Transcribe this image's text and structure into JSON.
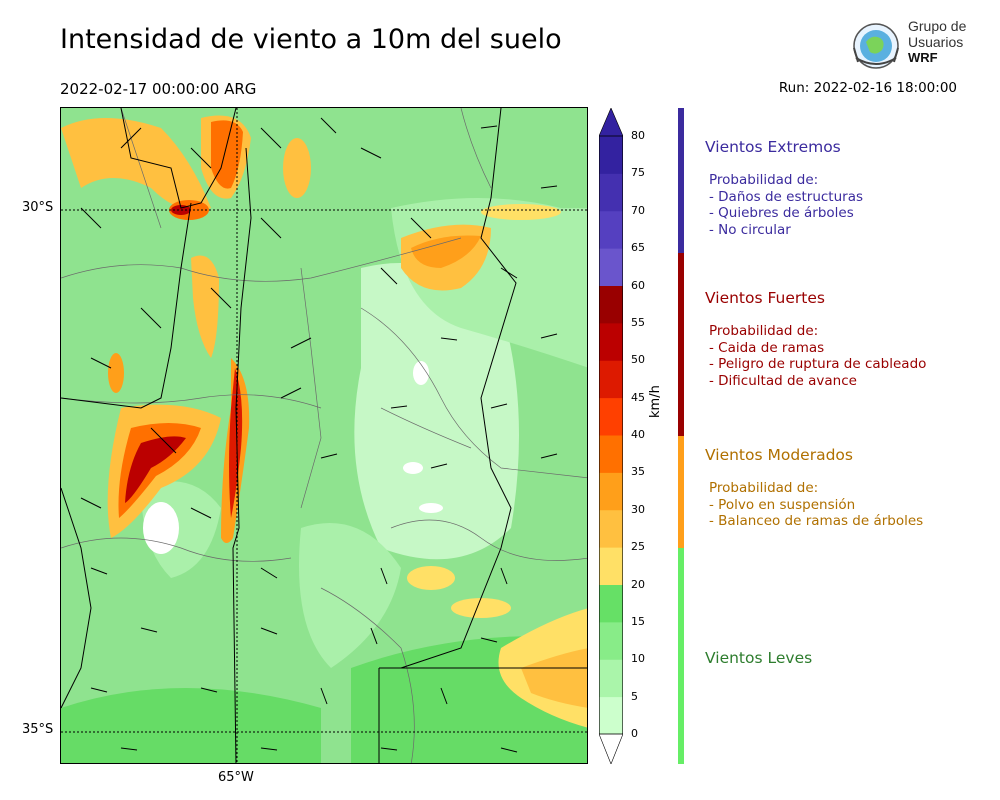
{
  "title": "Intensidad de viento a 10m del suelo",
  "valid_time": "2022-02-17 00:00:00 ARG",
  "run_time": "Run: 2022-02-16 18:00:00",
  "logo": {
    "line1": "Grupo de",
    "line2": "Usuarios",
    "line3": "WRF"
  },
  "map": {
    "lat_labels": [
      "30°S",
      "35°S"
    ],
    "lon_labels": [
      "65°W"
    ]
  },
  "colorbar": {
    "unit": "km/h",
    "ticks": [
      "0",
      "5",
      "10",
      "15",
      "20",
      "25",
      "30",
      "35",
      "40",
      "45",
      "50",
      "55",
      "60",
      "65",
      "70",
      "75",
      "80"
    ],
    "colors": [
      "#ffffff",
      "#ccffcc",
      "#aaf5aa",
      "#88ec88",
      "#66e066",
      "#ffe066",
      "#ffc040",
      "#ff9f1a",
      "#ff7000",
      "#ff4000",
      "#dd1a00",
      "#bb0000",
      "#990000",
      "#6a55cc",
      "#5540c0",
      "#4430b0",
      "#3322a0"
    ]
  },
  "categories": [
    {
      "title": "Vientos Extremos",
      "color": "#3b2b9e",
      "bar": "#3b2b9e",
      "desc": "Probabilidad de:\n- Daños de estructuras\n- Quiebres de árboles\n- No circular"
    },
    {
      "title": "Vientos Fuertes",
      "color": "#990000",
      "bar": "#990000",
      "desc": "Probabilidad de:\n- Caida de ramas\n- Peligro de ruptura de cableado\n- Dificultad de avance"
    },
    {
      "title": "Vientos Moderados",
      "color": "#b07000",
      "bar": "#ff9f1a",
      "desc": "Probabilidad de:\n- Polvo en suspensión\n- Balanceo de ramas de árboles"
    },
    {
      "title": "Vientos Leves",
      "color": "#2e7d2e",
      "bar": "#66ee66",
      "desc": ""
    }
  ]
}
